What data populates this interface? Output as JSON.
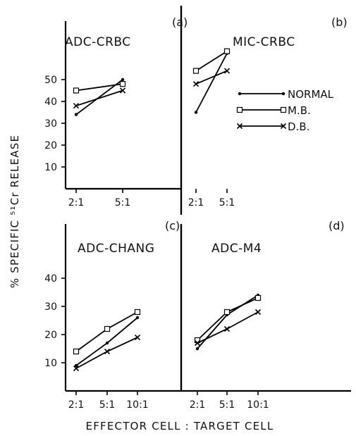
{
  "ylabel": "% SPECIFIC ⁵¹Cr RELEASE",
  "xlabel": "EFFECTOR CELL : TARGET CELL",
  "legend": [
    {
      "name": "NORMAL",
      "marker": "dot"
    },
    {
      "name": "M.B.",
      "marker": "square"
    },
    {
      "name": "D.B.",
      "marker": "x"
    }
  ],
  "chart_data": [
    {
      "type": "line",
      "panel_label": "(a)",
      "title": "ADC-CRBC",
      "categories": [
        "2:1",
        "5:1"
      ],
      "ylim": [
        0,
        55
      ],
      "yticks": [
        10,
        20,
        30,
        40,
        50
      ],
      "series": [
        {
          "name": "NORMAL",
          "values": [
            34,
            50
          ]
        },
        {
          "name": "M.B.",
          "values": [
            45,
            48
          ]
        },
        {
          "name": "D.B.",
          "values": [
            38,
            45
          ]
        }
      ]
    },
    {
      "type": "line",
      "panel_label": "(b)",
      "title": "MIC-CRBC",
      "categories": [
        "2:1",
        "5:1"
      ],
      "ylim": [
        0,
        55
      ],
      "yticks": [],
      "series": [
        {
          "name": "NORMAL",
          "values": [
            35,
            62
          ]
        },
        {
          "name": "M.B.",
          "values": [
            54,
            63
          ]
        },
        {
          "name": "D.B.",
          "values": [
            48,
            54
          ]
        }
      ]
    },
    {
      "type": "line",
      "panel_label": "(c)",
      "title": "ADC-CHANG",
      "categories": [
        "2:1",
        "5:1",
        "10:1"
      ],
      "ylim": [
        0,
        45
      ],
      "yticks": [
        10,
        20,
        30,
        40
      ],
      "series": [
        {
          "name": "NORMAL",
          "values": [
            9,
            17,
            26
          ]
        },
        {
          "name": "M.B.",
          "values": [
            14,
            22,
            28
          ]
        },
        {
          "name": "D.B.",
          "values": [
            8,
            14,
            19
          ]
        }
      ]
    },
    {
      "type": "line",
      "panel_label": "(d)",
      "title": "ADC-M4",
      "categories": [
        "2:1",
        "5:1",
        "10:1"
      ],
      "ylim": [
        0,
        45
      ],
      "yticks": [],
      "series": [
        {
          "name": "NORMAL",
          "values": [
            15,
            27,
            34
          ]
        },
        {
          "name": "M.B.",
          "values": [
            18,
            28,
            33
          ]
        },
        {
          "name": "D.B.",
          "values": [
            17,
            22,
            28
          ]
        }
      ]
    }
  ]
}
